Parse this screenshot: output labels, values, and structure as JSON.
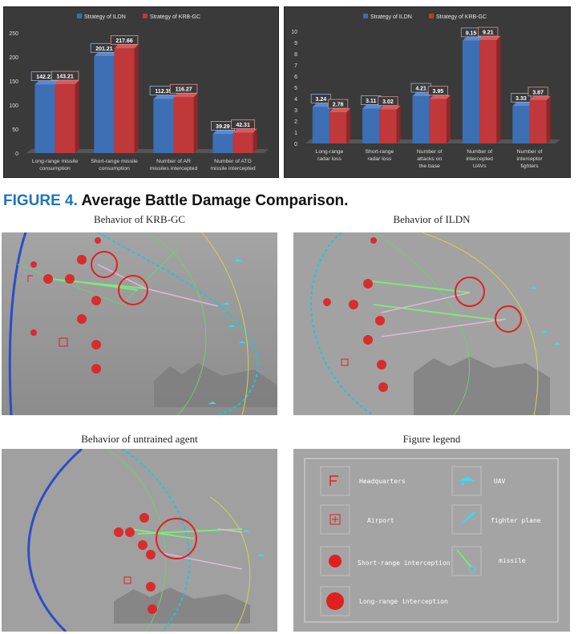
{
  "chart_data": [
    {
      "type": "bar",
      "categories": [
        "Long-range missile consumption",
        "Short-range missile consumption",
        "Number of AR missiles intercepted",
        "Number of ATG missile intercepted"
      ],
      "series": [
        {
          "name": "Strategy of ILDN",
          "values": [
            142.23,
            201.21,
            112.35,
            39.29
          ]
        },
        {
          "name": "Strategy of KRB-GC",
          "values": [
            143.21,
            217.66,
            116.27,
            42.31
          ]
        }
      ],
      "ylim": [
        0,
        250
      ],
      "yticks": [
        "0",
        "50",
        "100",
        "150",
        "200",
        "250"
      ],
      "grid": false,
      "legend_position": "top-center",
      "value_labels": [
        "142.23",
        "201.21",
        "112.35",
        "39.29",
        "143.21",
        "217.66",
        "116.27",
        "42.31"
      ]
    },
    {
      "type": "bar",
      "categories": [
        "Long-range radar loss",
        "Short-range radar loss",
        "Number of attacks on the base",
        "Number of intercepted UAVs",
        "Number of interceptor fighters"
      ],
      "series": [
        {
          "name": "Strategy of ILDN",
          "values": [
            3.24,
            3.11,
            4.21,
            9.15,
            3.33
          ]
        },
        {
          "name": "Strategy of KRB-GC",
          "values": [
            2.78,
            3.02,
            3.95,
            9.21,
            3.87
          ]
        }
      ],
      "ylim": [
        0,
        10
      ],
      "yticks": [
        "0",
        "1",
        "2",
        "3",
        "4",
        "5",
        "6",
        "7",
        "8",
        "9",
        "10"
      ],
      "grid": false,
      "legend_position": "top-center",
      "value_labels": [
        "3.24",
        "3.11",
        "4.21",
        "9.15",
        "3.33",
        "2.78",
        "3.02",
        "3.95",
        "9.21",
        "3.87"
      ]
    }
  ],
  "colors": {
    "ildn": "#3c6fb4",
    "krb": "#c0383a",
    "panel_bg": "#3a3a3a",
    "caption_blue": "#1b75bb"
  },
  "caption": {
    "number": "FIGURE 4.",
    "text": "Average Battle Damage Comparison."
  },
  "maps": {
    "krb_title": "Behavior of KRB-GC",
    "ildn_title": "Behavior of  ILDN",
    "untrained_title": "Behavior of untrained agent",
    "legend_title": "Figure legend"
  },
  "legend": {
    "headquarters": "Headquarters",
    "airport": "Airport",
    "short_range": "Short-range interception",
    "long_range": "Long-range interception",
    "uav": "UAV",
    "fighter": "fighter plane",
    "missile": "missile"
  }
}
